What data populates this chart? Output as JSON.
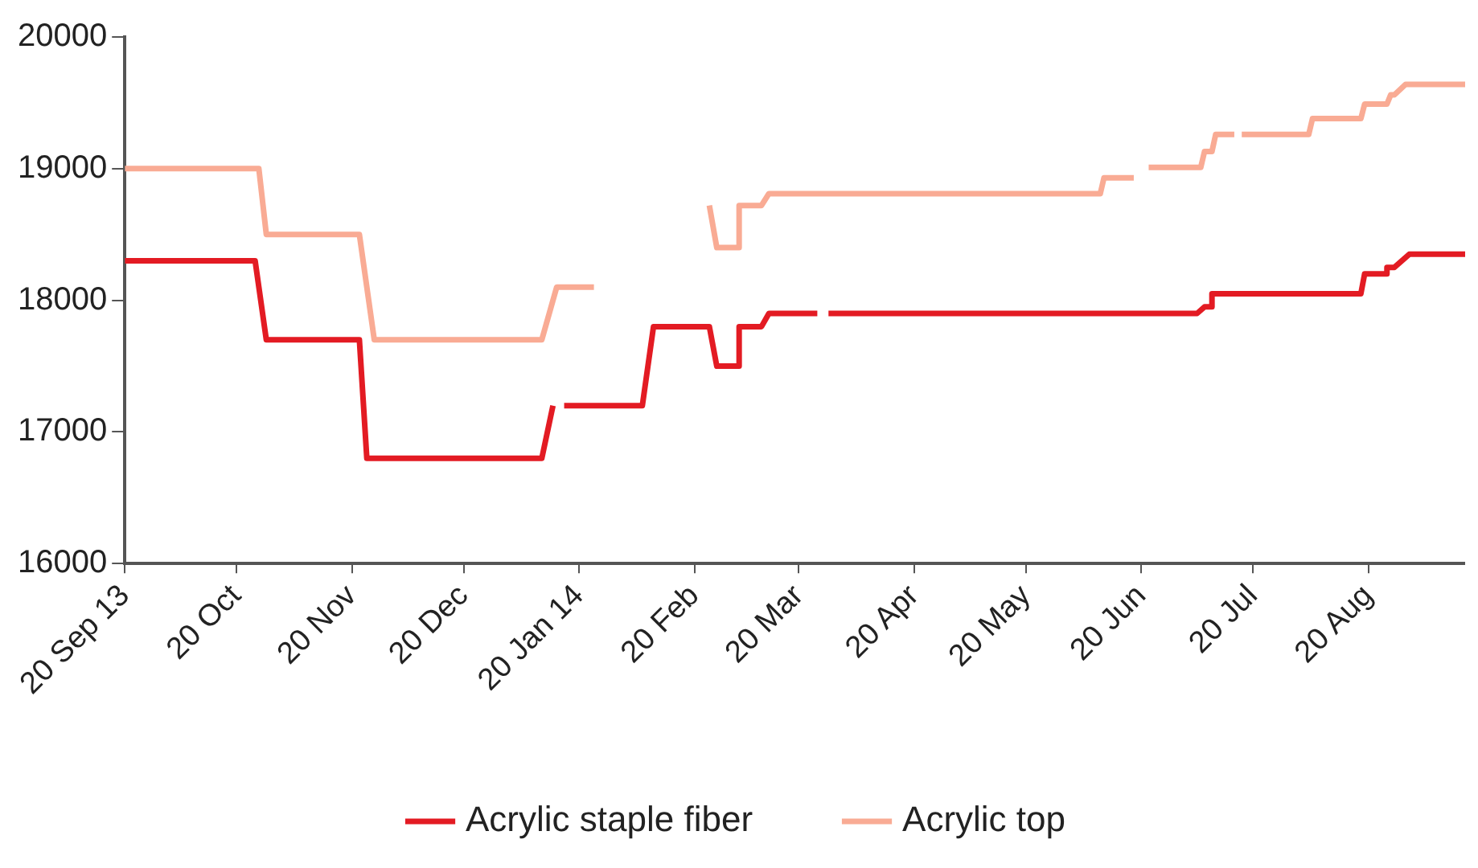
{
  "chart_data": {
    "type": "line",
    "xlim": [
      "2013-09-20",
      "2014-09-15"
    ],
    "xticks": [
      {
        "value": "2013-09-20",
        "label": "20 Sep 13"
      },
      {
        "value": "2013-10-20",
        "label": "20 Oct"
      },
      {
        "value": "2013-11-20",
        "label": "20 Nov"
      },
      {
        "value": "2013-12-20",
        "label": "20 Dec"
      },
      {
        "value": "2014-01-20",
        "label": "20 Jan 14"
      },
      {
        "value": "2014-02-20",
        "label": "20 Feb"
      },
      {
        "value": "2014-03-20",
        "label": "20 Mar"
      },
      {
        "value": "2014-04-20",
        "label": "20 Apr"
      },
      {
        "value": "2014-05-20",
        "label": "20 May"
      },
      {
        "value": "2014-06-20",
        "label": "20 Jun"
      },
      {
        "value": "2014-07-20",
        "label": "20 Jul"
      },
      {
        "value": "2014-08-20",
        "label": "20 Aug"
      }
    ],
    "ylim": [
      16000,
      20000
    ],
    "yticks": [
      16000,
      17000,
      18000,
      19000,
      20000
    ],
    "grid": false,
    "legend": "bottom",
    "marker": "none",
    "line_style": "solid",
    "series": [
      {
        "name": "Acrylic staple fiber",
        "color": "#e31b23",
        "x": [
          "2013-09-20",
          "2013-10-25",
          "2013-10-28",
          "2013-11-22",
          "2013-11-24",
          "2014-01-10",
          "2014-01-13",
          "2014-01-14",
          "2014-01-16",
          "2014-02-06",
          "2014-02-09",
          "2014-02-24",
          "2014-02-26",
          "2014-03-04",
          "2014-03-04",
          "2014-03-10",
          "2014-03-12",
          "2014-03-25",
          "2014-03-26",
          "2014-03-28",
          "2014-07-05",
          "2014-07-07",
          "2014-07-09",
          "2014-07-09",
          "2014-08-18",
          "2014-08-19",
          "2014-08-25",
          "2014-08-25",
          "2014-08-27",
          "2014-08-31",
          "2014-09-15"
        ],
        "values": [
          18300,
          18300,
          17700,
          17700,
          16800,
          16800,
          17200,
          null,
          17200,
          17200,
          17800,
          17800,
          17500,
          17500,
          17800,
          17800,
          17900,
          17900,
          null,
          17900,
          17900,
          17950,
          17950,
          18050,
          18050,
          18200,
          18200,
          18250,
          18250,
          18350,
          18350
        ]
      },
      {
        "name": "Acrylic top",
        "color": "#f9ab94",
        "x": [
          "2013-09-20",
          "2013-10-26",
          "2013-10-28",
          "2013-11-22",
          "2013-11-26",
          "2014-01-10",
          "2014-01-14",
          "2014-01-24",
          "2014-02-10",
          "2014-02-24",
          "2014-02-26",
          "2014-03-04",
          "2014-03-04",
          "2014-03-10",
          "2014-03-12",
          "2014-06-09",
          "2014-06-10",
          "2014-06-18",
          "2014-06-20",
          "2014-06-22",
          "2014-07-06",
          "2014-07-07",
          "2014-07-09",
          "2014-07-10",
          "2014-07-15",
          "2014-07-16",
          "2014-07-17",
          "2014-08-04",
          "2014-08-05",
          "2014-08-18",
          "2014-08-19",
          "2014-08-25",
          "2014-08-26",
          "2014-08-27",
          "2014-08-30",
          "2014-09-15"
        ],
        "values": [
          19000,
          19000,
          18500,
          18500,
          17700,
          17700,
          18100,
          18100,
          null,
          18720,
          18400,
          18400,
          18720,
          18720,
          18810,
          18810,
          18930,
          18930,
          null,
          19010,
          19010,
          19130,
          19130,
          19260,
          19260,
          null,
          19260,
          19260,
          19380,
          19380,
          19490,
          19490,
          19560,
          19560,
          19640,
          19640
        ]
      }
    ]
  }
}
